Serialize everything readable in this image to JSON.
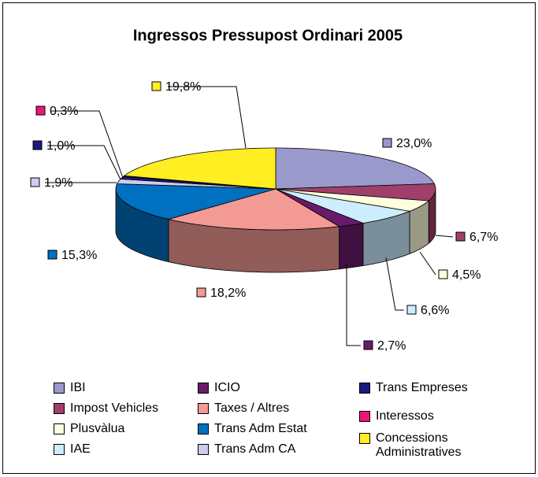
{
  "chart_data": {
    "type": "pie3d",
    "title": "Ingressos Pressupost Ordinari 2005",
    "categories": [
      "IBI",
      "Impost Vehicles",
      "Plusvàlua",
      "IAE",
      "ICIO",
      "Taxes / Altres",
      "Trans Adm Estat",
      "Trans Adm CA",
      "Trans Empreses",
      "Interessos",
      "Concessions Administratives"
    ],
    "values": [
      23.0,
      6.7,
      4.5,
      6.6,
      2.7,
      18.2,
      15.3,
      1.9,
      1.0,
      0.3,
      19.8
    ],
    "value_labels": [
      "23,0%",
      "6,7%",
      "4,5%",
      "6,6%",
      "2,7%",
      "18,2%",
      "15,3%",
      "1,9%",
      "1,0%",
      "0,3%",
      "19,8%"
    ],
    "colors": [
      "#9999cc",
      "#a0406a",
      "#ffffdd",
      "#cceeff",
      "#6a1a6a",
      "#f49a94",
      "#0070c0",
      "#ccccf0",
      "#1a1a80",
      "#e8187a",
      "#ffee22"
    ],
    "legend": "bottom"
  }
}
